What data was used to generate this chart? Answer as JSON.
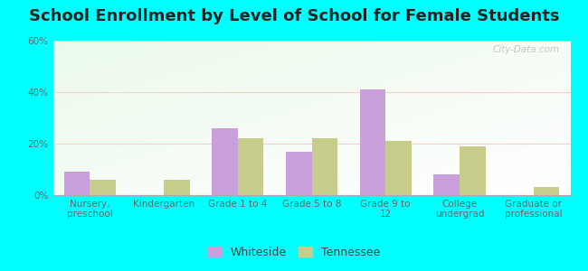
{
  "title": "School Enrollment by Level of School for Female Students",
  "categories": [
    "Nursery,\npreschool",
    "Kindergarten",
    "Grade 1 to 4",
    "Grade 5 to 8",
    "Grade 9 to\n12",
    "College\nundergrad",
    "Graduate or\nprofessional"
  ],
  "whiteside": [
    9,
    0,
    26,
    17,
    41,
    8,
    0
  ],
  "tennessee": [
    6,
    6,
    22,
    22,
    21,
    19,
    3
  ],
  "whiteside_color": "#c9a0dc",
  "tennessee_color": "#c8cc8a",
  "background_color": "#00ffff",
  "ylim": [
    0,
    60
  ],
  "yticks": [
    0,
    20,
    40,
    60
  ],
  "ytick_labels": [
    "0%",
    "20%",
    "40%",
    "60%"
  ],
  "legend_whiteside": "Whiteside",
  "legend_tennessee": "Tennessee",
  "title_fontsize": 13,
  "tick_fontsize": 7.5,
  "legend_fontsize": 9,
  "bar_width": 0.35,
  "watermark": "City-Data.com"
}
